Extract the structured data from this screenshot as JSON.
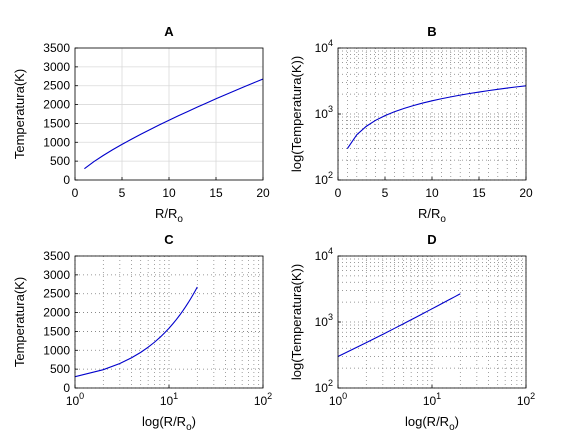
{
  "chart_data": [
    {
      "panel": "A",
      "type": "line",
      "title": "A",
      "xlabel": "R/R",
      "xlabel_sub": "o",
      "ylabel": "Temperatura(K)",
      "xscale": "linear",
      "yscale": "linear",
      "xlim": [
        0,
        20
      ],
      "ylim": [
        0,
        3500
      ],
      "xticks": [
        0,
        5,
        10,
        15,
        20
      ],
      "xtick_labels": [
        "0",
        "5",
        "10",
        "15",
        "20"
      ],
      "yticks": [
        0,
        500,
        1000,
        1500,
        2000,
        2500,
        3000,
        3500
      ],
      "ytick_labels": [
        "0",
        "500",
        "1000",
        "1500",
        "2000",
        "2500",
        "3000",
        "3500"
      ],
      "grid": "major",
      "line_color": "#0000cc",
      "series": [
        {
          "x": [
            1,
            2,
            3,
            4,
            5,
            6,
            7,
            8,
            9,
            10,
            11,
            12,
            13,
            14,
            15,
            16,
            17,
            18,
            19,
            20
          ],
          "y": [
            300,
            486,
            650,
            802,
            945,
            1081,
            1213,
            1340,
            1464,
            1585,
            1703,
            1818,
            1932,
            2043,
            2153,
            2261,
            2367,
            2472,
            2576,
            2678
          ]
        }
      ]
    },
    {
      "panel": "B",
      "type": "line",
      "title": "B",
      "xlabel": "R/R",
      "xlabel_sub": "o",
      "ylabel": "log(Temperatura(K))",
      "xscale": "linear",
      "yscale": "log",
      "xlim": [
        0,
        20
      ],
      "ylim": [
        100,
        10000
      ],
      "xticks": [
        0,
        5,
        10,
        15,
        20
      ],
      "xtick_labels": [
        "0",
        "5",
        "10",
        "15",
        "20"
      ],
      "yticks": [
        100,
        1000,
        10000
      ],
      "ytick_labels": [
        {
          "base": "10",
          "exp": "2"
        },
        {
          "base": "10",
          "exp": "3"
        },
        {
          "base": "10",
          "exp": "4"
        }
      ],
      "grid": "major+minor",
      "line_color": "#0000cc",
      "series": [
        {
          "x": [
            1,
            2,
            3,
            4,
            5,
            6,
            7,
            8,
            9,
            10,
            11,
            12,
            13,
            14,
            15,
            16,
            17,
            18,
            19,
            20
          ],
          "y": [
            300,
            486,
            650,
            802,
            945,
            1081,
            1213,
            1340,
            1464,
            1585,
            1703,
            1818,
            1932,
            2043,
            2153,
            2261,
            2367,
            2472,
            2576,
            2678
          ]
        }
      ]
    },
    {
      "panel": "C",
      "type": "line",
      "title": "C",
      "xlabel": "log(R/R",
      "xlabel_sub": "o",
      "xlabel_suffix": ")",
      "ylabel": "Temperatura(K)",
      "xscale": "log",
      "yscale": "linear",
      "xlim": [
        1,
        100
      ],
      "ylim": [
        0,
        3500
      ],
      "xticks": [
        1,
        10,
        100
      ],
      "xtick_labels": [
        {
          "base": "10",
          "exp": "0"
        },
        {
          "base": "10",
          "exp": "1"
        },
        {
          "base": "10",
          "exp": "2"
        }
      ],
      "yticks": [
        0,
        500,
        1000,
        1500,
        2000,
        2500,
        3000,
        3500
      ],
      "ytick_labels": [
        "0",
        "500",
        "1000",
        "1500",
        "2000",
        "2500",
        "3000",
        "3500"
      ],
      "grid": "major+minor",
      "line_color": "#0000cc",
      "series": [
        {
          "x": [
            1,
            2,
            3,
            4,
            5,
            6,
            7,
            8,
            9,
            10,
            11,
            12,
            13,
            14,
            15,
            16,
            17,
            18,
            19,
            20
          ],
          "y": [
            300,
            486,
            650,
            802,
            945,
            1081,
            1213,
            1340,
            1464,
            1585,
            1703,
            1818,
            1932,
            2043,
            2153,
            2261,
            2367,
            2472,
            2576,
            2678
          ]
        }
      ]
    },
    {
      "panel": "D",
      "type": "line",
      "title": "D",
      "xlabel": "log(R/R",
      "xlabel_sub": "o",
      "xlabel_suffix": ")",
      "ylabel": "log(Temperatura(K))",
      "xscale": "log",
      "yscale": "log",
      "xlim": [
        1,
        100
      ],
      "ylim": [
        100,
        10000
      ],
      "xticks": [
        1,
        10,
        100
      ],
      "xtick_labels": [
        {
          "base": "10",
          "exp": "0"
        },
        {
          "base": "10",
          "exp": "1"
        },
        {
          "base": "10",
          "exp": "2"
        }
      ],
      "yticks": [
        100,
        1000,
        10000
      ],
      "ytick_labels": [
        {
          "base": "10",
          "exp": "2"
        },
        {
          "base": "10",
          "exp": "3"
        },
        {
          "base": "10",
          "exp": "4"
        }
      ],
      "grid": "major+minor",
      "line_color": "#0000cc",
      "series": [
        {
          "x": [
            1,
            2,
            3,
            4,
            5,
            6,
            7,
            8,
            9,
            10,
            11,
            12,
            13,
            14,
            15,
            16,
            17,
            18,
            19,
            20
          ],
          "y": [
            300,
            486,
            650,
            802,
            945,
            1081,
            1213,
            1340,
            1464,
            1585,
            1703,
            1818,
            1932,
            2043,
            2153,
            2261,
            2367,
            2472,
            2576,
            2678
          ]
        }
      ]
    }
  ]
}
